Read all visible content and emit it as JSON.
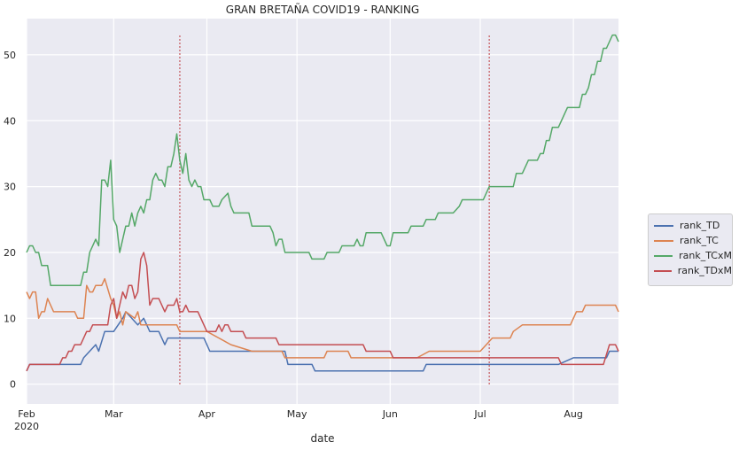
{
  "chart_data": {
    "type": "line",
    "title": "GRAN BRETAÑA COVID19 - RANKING",
    "xlabel": "date",
    "ylabel": "",
    "xlim": [
      "2020-02-01",
      "2020-08-16"
    ],
    "ylim": [
      -3,
      55.5
    ],
    "y_ticks": [
      0,
      10,
      20,
      30,
      40,
      50
    ],
    "x_ticks": [
      {
        "date": "2020-02-01",
        "label": "Feb",
        "sublabel": "2020"
      },
      {
        "date": "2020-03-01",
        "label": "Mar",
        "sublabel": ""
      },
      {
        "date": "2020-04-01",
        "label": "Apr",
        "sublabel": ""
      },
      {
        "date": "2020-05-01",
        "label": "May",
        "sublabel": ""
      },
      {
        "date": "2020-06-01",
        "label": "Jun",
        "sublabel": ""
      },
      {
        "date": "2020-07-01",
        "label": "Jul",
        "sublabel": ""
      },
      {
        "date": "2020-08-01",
        "label": "Aug",
        "sublabel": ""
      }
    ],
    "grid": true,
    "legend_position": "right",
    "background": "#eaeaf2",
    "vlines": [
      {
        "date": "2020-03-23",
        "color": "#c44e52",
        "style": "dotted",
        "ymin": 0,
        "ymax": 53
      },
      {
        "date": "2020-07-04",
        "color": "#c44e52",
        "style": "dotted",
        "ymin": 0,
        "ymax": 53
      }
    ],
    "series": [
      {
        "name": "rank_TD",
        "color": "#4c72b0",
        "points": [
          [
            "2020-02-01",
            2
          ],
          [
            "2020-02-02",
            3
          ],
          [
            "2020-02-12",
            3
          ],
          [
            "2020-02-19",
            3
          ],
          [
            "2020-02-20",
            4
          ],
          [
            "2020-02-22",
            5
          ],
          [
            "2020-02-24",
            6
          ],
          [
            "2020-02-25",
            5
          ],
          [
            "2020-02-27",
            8
          ],
          [
            "2020-03-01",
            8
          ],
          [
            "2020-03-04",
            10
          ],
          [
            "2020-03-05",
            11
          ],
          [
            "2020-03-07",
            10
          ],
          [
            "2020-03-09",
            9
          ],
          [
            "2020-03-11",
            10
          ],
          [
            "2020-03-13",
            8
          ],
          [
            "2020-03-16",
            8
          ],
          [
            "2020-03-18",
            6
          ],
          [
            "2020-03-19",
            7
          ],
          [
            "2020-03-31",
            7
          ],
          [
            "2020-04-02",
            5
          ],
          [
            "2020-04-27",
            5
          ],
          [
            "2020-04-28",
            3
          ],
          [
            "2020-05-06",
            3
          ],
          [
            "2020-05-07",
            2
          ],
          [
            "2020-06-12",
            2
          ],
          [
            "2020-06-13",
            3
          ],
          [
            "2020-07-27",
            3
          ],
          [
            "2020-08-01",
            4
          ],
          [
            "2020-08-12",
            4
          ],
          [
            "2020-08-13",
            5
          ],
          [
            "2020-08-16",
            5
          ]
        ]
      },
      {
        "name": "rank_TC",
        "color": "#dd8452",
        "points": [
          [
            "2020-02-01",
            14
          ],
          [
            "2020-02-02",
            13
          ],
          [
            "2020-02-03",
            14
          ],
          [
            "2020-02-04",
            14
          ],
          [
            "2020-02-05",
            10
          ],
          [
            "2020-02-06",
            11
          ],
          [
            "2020-02-07",
            11
          ],
          [
            "2020-02-08",
            13
          ],
          [
            "2020-02-10",
            11
          ],
          [
            "2020-02-17",
            11
          ],
          [
            "2020-02-18",
            10
          ],
          [
            "2020-02-20",
            10
          ],
          [
            "2020-02-21",
            15
          ],
          [
            "2020-02-22",
            14
          ],
          [
            "2020-02-23",
            14
          ],
          [
            "2020-02-24",
            15
          ],
          [
            "2020-02-26",
            15
          ],
          [
            "2020-02-27",
            16
          ],
          [
            "2020-02-29",
            13
          ],
          [
            "2020-03-01",
            12
          ],
          [
            "2020-03-02",
            10
          ],
          [
            "2020-03-03",
            11
          ],
          [
            "2020-03-04",
            9
          ],
          [
            "2020-03-05",
            11
          ],
          [
            "2020-03-08",
            10
          ],
          [
            "2020-03-09",
            11
          ],
          [
            "2020-03-10",
            9
          ],
          [
            "2020-03-22",
            9
          ],
          [
            "2020-03-23",
            8
          ],
          [
            "2020-04-01",
            8
          ],
          [
            "2020-04-05",
            7
          ],
          [
            "2020-04-09",
            6
          ],
          [
            "2020-04-16",
            5
          ],
          [
            "2020-04-26",
            5
          ],
          [
            "2020-04-27",
            4
          ],
          [
            "2020-05-10",
            4
          ],
          [
            "2020-05-11",
            5
          ],
          [
            "2020-05-18",
            5
          ],
          [
            "2020-05-19",
            4
          ],
          [
            "2020-06-07",
            4
          ],
          [
            "2020-06-10",
            4
          ],
          [
            "2020-06-14",
            5
          ],
          [
            "2020-07-01",
            5
          ],
          [
            "2020-07-03",
            6
          ],
          [
            "2020-07-05",
            7
          ],
          [
            "2020-07-11",
            7
          ],
          [
            "2020-07-12",
            8
          ],
          [
            "2020-07-15",
            9
          ],
          [
            "2020-07-31",
            9
          ],
          [
            "2020-08-02",
            11
          ],
          [
            "2020-08-04",
            11
          ],
          [
            "2020-08-05",
            12
          ],
          [
            "2020-08-15",
            12
          ],
          [
            "2020-08-16",
            11
          ]
        ]
      },
      {
        "name": "rank_TCxM",
        "color": "#55a868",
        "points": [
          [
            "2020-02-01",
            20
          ],
          [
            "2020-02-02",
            21
          ],
          [
            "2020-02-03",
            21
          ],
          [
            "2020-02-04",
            20
          ],
          [
            "2020-02-05",
            20
          ],
          [
            "2020-02-06",
            18
          ],
          [
            "2020-02-08",
            18
          ],
          [
            "2020-02-09",
            15
          ],
          [
            "2020-02-19",
            15
          ],
          [
            "2020-02-20",
            17
          ],
          [
            "2020-02-21",
            17
          ],
          [
            "2020-02-22",
            20
          ],
          [
            "2020-02-24",
            22
          ],
          [
            "2020-02-25",
            21
          ],
          [
            "2020-02-26",
            31
          ],
          [
            "2020-02-27",
            31
          ],
          [
            "2020-02-28",
            30
          ],
          [
            "2020-02-29",
            34
          ],
          [
            "2020-03-01",
            25
          ],
          [
            "2020-03-02",
            24
          ],
          [
            "2020-03-03",
            20
          ],
          [
            "2020-03-04",
            22
          ],
          [
            "2020-03-05",
            24
          ],
          [
            "2020-03-06",
            24
          ],
          [
            "2020-03-07",
            26
          ],
          [
            "2020-03-08",
            24
          ],
          [
            "2020-03-09",
            26
          ],
          [
            "2020-03-10",
            27
          ],
          [
            "2020-03-11",
            26
          ],
          [
            "2020-03-12",
            28
          ],
          [
            "2020-03-13",
            28
          ],
          [
            "2020-03-14",
            31
          ],
          [
            "2020-03-15",
            32
          ],
          [
            "2020-03-16",
            31
          ],
          [
            "2020-03-17",
            31
          ],
          [
            "2020-03-18",
            30
          ],
          [
            "2020-03-19",
            33
          ],
          [
            "2020-03-20",
            33
          ],
          [
            "2020-03-21",
            35
          ],
          [
            "2020-03-22",
            38
          ],
          [
            "2020-03-23",
            34
          ],
          [
            "2020-03-24",
            32
          ],
          [
            "2020-03-25",
            35
          ],
          [
            "2020-03-26",
            31
          ],
          [
            "2020-03-27",
            30
          ],
          [
            "2020-03-28",
            31
          ],
          [
            "2020-03-29",
            30
          ],
          [
            "2020-03-30",
            30
          ],
          [
            "2020-03-31",
            28
          ],
          [
            "2020-04-02",
            28
          ],
          [
            "2020-04-03",
            27
          ],
          [
            "2020-04-05",
            27
          ],
          [
            "2020-04-06",
            28
          ],
          [
            "2020-04-08",
            29
          ],
          [
            "2020-04-09",
            27
          ],
          [
            "2020-04-10",
            26
          ],
          [
            "2020-04-15",
            26
          ],
          [
            "2020-04-16",
            24
          ],
          [
            "2020-04-22",
            24
          ],
          [
            "2020-04-23",
            23
          ],
          [
            "2020-04-24",
            21
          ],
          [
            "2020-04-25",
            22
          ],
          [
            "2020-04-26",
            22
          ],
          [
            "2020-04-27",
            20
          ],
          [
            "2020-05-05",
            20
          ],
          [
            "2020-05-06",
            19
          ],
          [
            "2020-05-10",
            19
          ],
          [
            "2020-05-11",
            20
          ],
          [
            "2020-05-15",
            20
          ],
          [
            "2020-05-16",
            21
          ],
          [
            "2020-05-20",
            21
          ],
          [
            "2020-05-21",
            22
          ],
          [
            "2020-05-22",
            21
          ],
          [
            "2020-05-23",
            21
          ],
          [
            "2020-05-24",
            23
          ],
          [
            "2020-05-29",
            23
          ],
          [
            "2020-05-31",
            21
          ],
          [
            "2020-06-01",
            21
          ],
          [
            "2020-06-02",
            23
          ],
          [
            "2020-06-07",
            23
          ],
          [
            "2020-06-08",
            24
          ],
          [
            "2020-06-12",
            24
          ],
          [
            "2020-06-13",
            25
          ],
          [
            "2020-06-16",
            25
          ],
          [
            "2020-06-17",
            26
          ],
          [
            "2020-06-22",
            26
          ],
          [
            "2020-06-24",
            27
          ],
          [
            "2020-06-25",
            28
          ],
          [
            "2020-07-02",
            28
          ],
          [
            "2020-07-04",
            30
          ],
          [
            "2020-07-12",
            30
          ],
          [
            "2020-07-13",
            32
          ],
          [
            "2020-07-15",
            32
          ],
          [
            "2020-07-17",
            34
          ],
          [
            "2020-07-20",
            34
          ],
          [
            "2020-07-21",
            35
          ],
          [
            "2020-07-22",
            35
          ],
          [
            "2020-07-23",
            37
          ],
          [
            "2020-07-24",
            37
          ],
          [
            "2020-07-25",
            39
          ],
          [
            "2020-07-27",
            39
          ],
          [
            "2020-07-30",
            42
          ],
          [
            "2020-08-03",
            42
          ],
          [
            "2020-08-04",
            44
          ],
          [
            "2020-08-05",
            44
          ],
          [
            "2020-08-06",
            45
          ],
          [
            "2020-08-07",
            47
          ],
          [
            "2020-08-08",
            47
          ],
          [
            "2020-08-09",
            49
          ],
          [
            "2020-08-10",
            49
          ],
          [
            "2020-08-11",
            51
          ],
          [
            "2020-08-12",
            51
          ],
          [
            "2020-08-13",
            52
          ],
          [
            "2020-08-14",
            53
          ],
          [
            "2020-08-15",
            53
          ],
          [
            "2020-08-16",
            52
          ]
        ]
      },
      {
        "name": "rank_TDxM",
        "color": "#c44e52",
        "points": [
          [
            "2020-02-01",
            2
          ],
          [
            "2020-02-02",
            3
          ],
          [
            "2020-02-12",
            3
          ],
          [
            "2020-02-13",
            4
          ],
          [
            "2020-02-14",
            4
          ],
          [
            "2020-02-15",
            5
          ],
          [
            "2020-02-16",
            5
          ],
          [
            "2020-02-17",
            6
          ],
          [
            "2020-02-19",
            6
          ],
          [
            "2020-02-21",
            8
          ],
          [
            "2020-02-22",
            8
          ],
          [
            "2020-02-23",
            9
          ],
          [
            "2020-02-28",
            9
          ],
          [
            "2020-02-29",
            12
          ],
          [
            "2020-03-01",
            13
          ],
          [
            "2020-03-02",
            10
          ],
          [
            "2020-03-03",
            12
          ],
          [
            "2020-03-04",
            14
          ],
          [
            "2020-03-05",
            13
          ],
          [
            "2020-03-06",
            15
          ],
          [
            "2020-03-07",
            15
          ],
          [
            "2020-03-08",
            13
          ],
          [
            "2020-03-09",
            14
          ],
          [
            "2020-03-10",
            19
          ],
          [
            "2020-03-11",
            20
          ],
          [
            "2020-03-12",
            18
          ],
          [
            "2020-03-13",
            12
          ],
          [
            "2020-03-14",
            13
          ],
          [
            "2020-03-16",
            13
          ],
          [
            "2020-03-18",
            11
          ],
          [
            "2020-03-19",
            12
          ],
          [
            "2020-03-21",
            12
          ],
          [
            "2020-03-22",
            13
          ],
          [
            "2020-03-23",
            11
          ],
          [
            "2020-03-24",
            11
          ],
          [
            "2020-03-25",
            12
          ],
          [
            "2020-03-26",
            11
          ],
          [
            "2020-03-29",
            11
          ],
          [
            "2020-03-30",
            10
          ],
          [
            "2020-04-01",
            8
          ],
          [
            "2020-04-04",
            8
          ],
          [
            "2020-04-05",
            9
          ],
          [
            "2020-04-06",
            8
          ],
          [
            "2020-04-07",
            9
          ],
          [
            "2020-04-08",
            9
          ],
          [
            "2020-04-09",
            8
          ],
          [
            "2020-04-13",
            8
          ],
          [
            "2020-04-14",
            7
          ],
          [
            "2020-04-24",
            7
          ],
          [
            "2020-04-25",
            6
          ],
          [
            "2020-05-23",
            6
          ],
          [
            "2020-05-24",
            5
          ],
          [
            "2020-06-01",
            5
          ],
          [
            "2020-06-02",
            4
          ],
          [
            "2020-07-27",
            4
          ],
          [
            "2020-07-28",
            3
          ],
          [
            "2020-08-11",
            3
          ],
          [
            "2020-08-13",
            6
          ],
          [
            "2020-08-15",
            6
          ],
          [
            "2020-08-16",
            5
          ]
        ]
      }
    ]
  }
}
